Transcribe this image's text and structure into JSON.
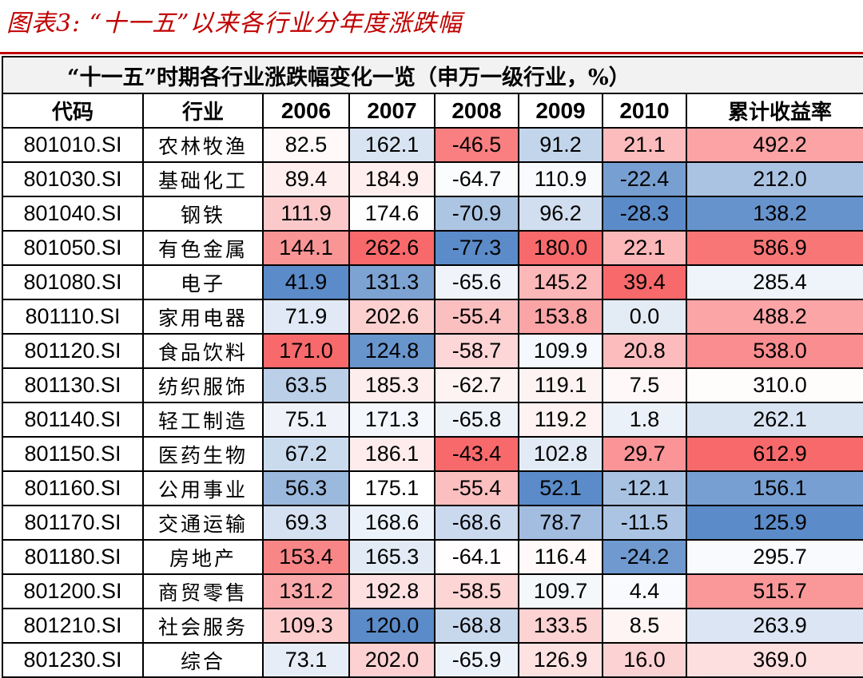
{
  "figure_title": "图表3:   “十一五”以来各行业分年度涨跌幅",
  "table": {
    "title": "“十一五”时期各行业涨跌幅变化一览（申万一级行业，%）",
    "headers": [
      "代码",
      "行业",
      "2006",
      "2007",
      "2008",
      "2009",
      "2010",
      "累计收益率"
    ],
    "scale_colors": {
      "low": "#5b8bc8",
      "mid": "#ffffff",
      "high": "#f8696b"
    },
    "rows": [
      [
        "801010.SI",
        "农林牧渔",
        "82.5",
        "162.1",
        "-46.5",
        "91.2",
        "21.1",
        "492.2"
      ],
      [
        "801030.SI",
        "基础化工",
        "89.4",
        "184.9",
        "-64.7",
        "110.9",
        "-22.4",
        "212.0"
      ],
      [
        "801040.SI",
        "钢铁",
        "111.9",
        "174.6",
        "-70.9",
        "96.2",
        "-28.3",
        "138.2"
      ],
      [
        "801050.SI",
        "有色金属",
        "144.1",
        "262.6",
        "-77.3",
        "180.0",
        "22.1",
        "586.9"
      ],
      [
        "801080.SI",
        "电子",
        "41.9",
        "131.3",
        "-65.6",
        "145.2",
        "39.4",
        "285.4"
      ],
      [
        "801110.SI",
        "家用电器",
        "71.9",
        "202.6",
        "-55.4",
        "153.8",
        "0.0",
        "488.2"
      ],
      [
        "801120.SI",
        "食品饮料",
        "171.0",
        "124.8",
        "-58.7",
        "109.9",
        "20.8",
        "538.0"
      ],
      [
        "801130.SI",
        "纺织服饰",
        "63.5",
        "185.3",
        "-62.7",
        "119.1",
        "7.5",
        "310.0"
      ],
      [
        "801140.SI",
        "轻工制造",
        "75.1",
        "171.3",
        "-65.8",
        "119.2",
        "1.8",
        "262.1"
      ],
      [
        "801150.SI",
        "医药生物",
        "67.2",
        "186.1",
        "-43.4",
        "102.8",
        "29.7",
        "612.9"
      ],
      [
        "801160.SI",
        "公用事业",
        "56.3",
        "175.1",
        "-55.4",
        "52.1",
        "-12.1",
        "156.1"
      ],
      [
        "801170.SI",
        "交通运输",
        "69.3",
        "168.6",
        "-68.6",
        "78.7",
        "-11.5",
        "125.9"
      ],
      [
        "801180.SI",
        "房地产",
        "153.4",
        "165.3",
        "-64.1",
        "116.4",
        "-24.2",
        "295.7"
      ],
      [
        "801200.SI",
        "商贸零售",
        "131.2",
        "192.8",
        "-58.5",
        "109.7",
        "4.4",
        "515.7"
      ],
      [
        "801210.SI",
        "社会服务",
        "109.3",
        "120.0",
        "-68.8",
        "133.5",
        "8.5",
        "263.9"
      ],
      [
        "801230.SI",
        "综合",
        "73.1",
        "202.0",
        "-65.9",
        "126.9",
        "16.0",
        "369.0"
      ]
    ]
  }
}
